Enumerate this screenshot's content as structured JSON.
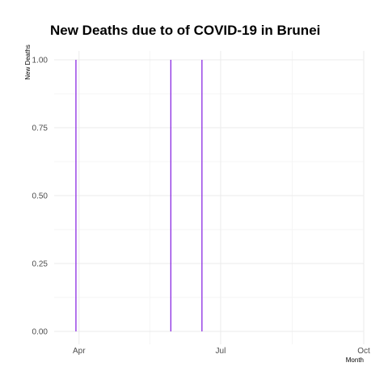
{
  "chart_data": {
    "type": "bar",
    "title": "New Deaths due to of COVID-19 in Brunei",
    "xlabel": "Month",
    "ylabel": "New Deaths",
    "x_axis_type": "date",
    "xlim": [
      "2020-03-16",
      "2020-10-01"
    ],
    "ylim": [
      0,
      1
    ],
    "x_ticks": [
      {
        "date": "2020-04-01",
        "label": "Apr"
      },
      {
        "date": "2020-07-01",
        "label": "Jul"
      },
      {
        "date": "2020-10-01",
        "label": "Oct"
      }
    ],
    "y_ticks": [
      {
        "value": 0,
        "label": "0.00"
      },
      {
        "value": 0.25,
        "label": "0.25"
      },
      {
        "value": 0.5,
        "label": "0.50"
      },
      {
        "value": 0.75,
        "label": "0.75"
      },
      {
        "value": 1,
        "label": "1.00"
      }
    ],
    "series": [
      {
        "color": "#8a2be2",
        "points": [
          {
            "x": "2020-03-30",
            "y": 1
          },
          {
            "x": "2020-05-30",
            "y": 1
          },
          {
            "x": "2020-06-19",
            "y": 1
          }
        ]
      }
    ],
    "grid": true,
    "legend": "none"
  }
}
